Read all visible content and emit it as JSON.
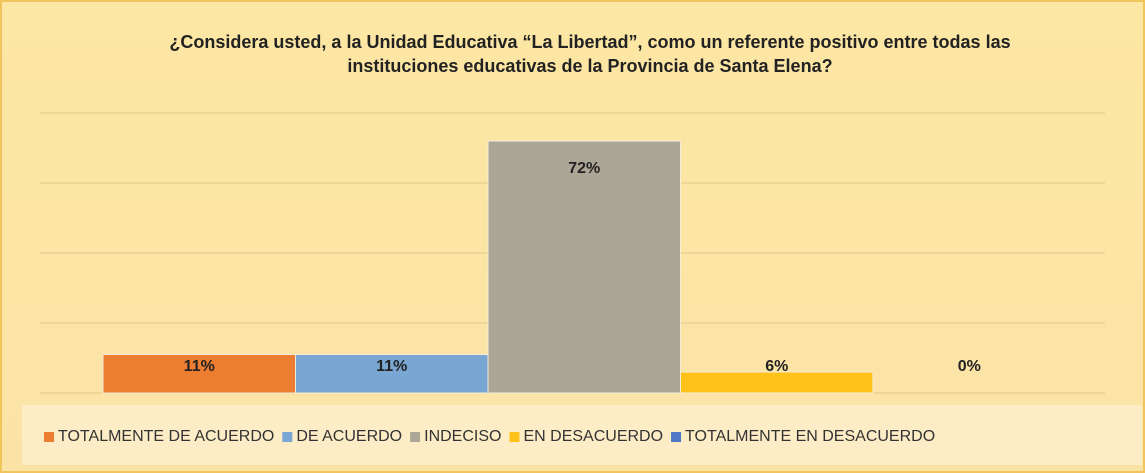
{
  "chart_data": {
    "type": "bar",
    "title": "¿Considera usted, a la Unidad Educativa “La Libertad”, como un referente positivo entre todas las instituciones educativas de la Provincia de Santa Elena?",
    "categories": [
      "TOTALMENTE DE ACUERDO",
      "DE ACUERDO",
      "INDECISO",
      "EN DESACUERDO",
      "TOTALMENTE EN DESACUERDO"
    ],
    "values": [
      11,
      11,
      72,
      6,
      0
    ],
    "value_labels": [
      "11%",
      "11%",
      "72%",
      "6%",
      "0%"
    ],
    "colors": [
      "#ed7d31",
      "#7aa6d3",
      "#aca697",
      "#ffc21a",
      "#4f78c4"
    ],
    "ylim": [
      0,
      80
    ],
    "yticks": [
      0,
      20,
      40,
      60,
      80
    ],
    "grid": true,
    "legend": "bottom"
  }
}
